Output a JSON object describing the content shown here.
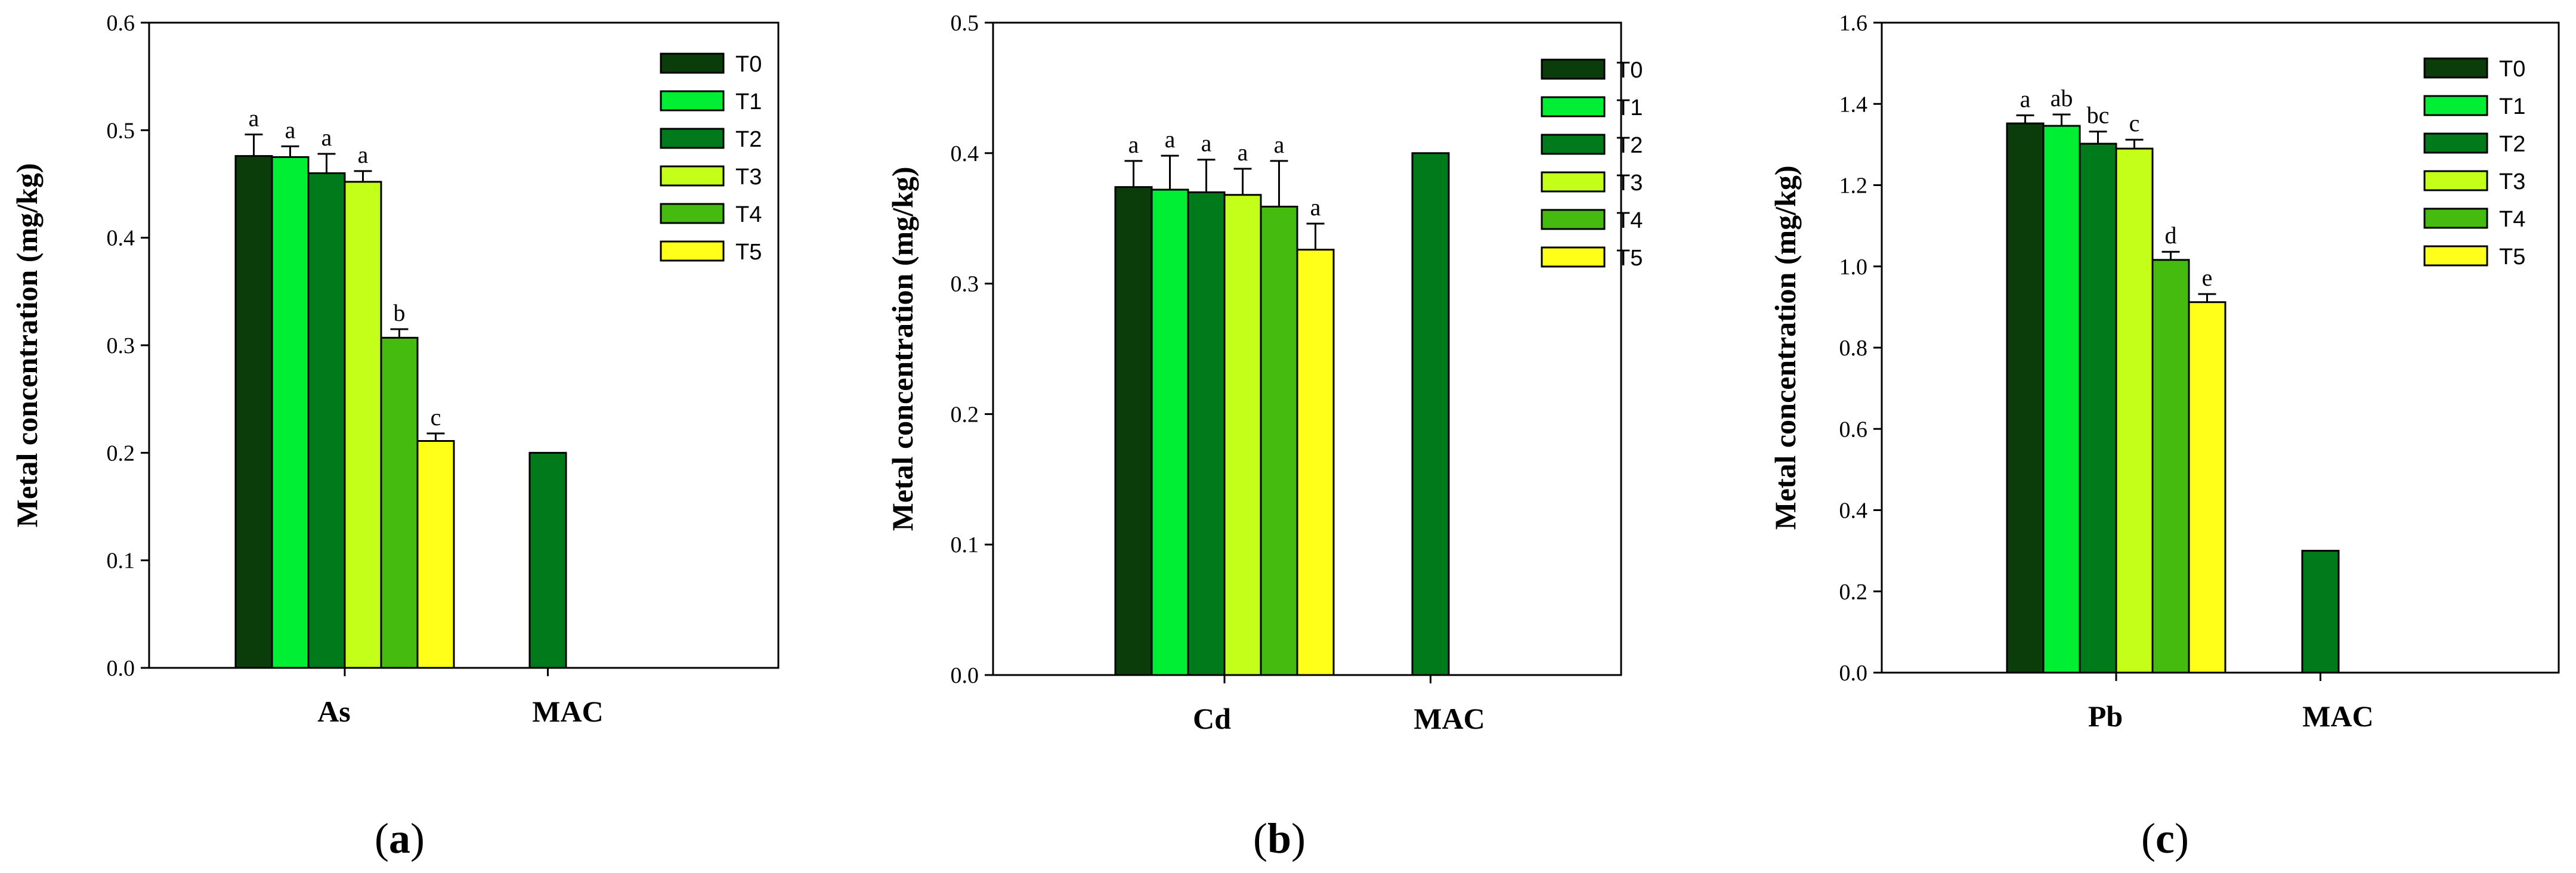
{
  "colors": {
    "T0": "#0b3d0b",
    "T1": "#00ee33",
    "T2": "#007a1a",
    "T3": "#c4ff1a",
    "T4": "#44bb0e",
    "T5": "#ffff1a",
    "MAC": "#007a1a"
  },
  "chart_data": [
    {
      "type": "bar",
      "panel": "a",
      "ylabel": "Metal concentration (mg/kg)",
      "ylim": [
        0,
        0.6
      ],
      "yticks": [
        "0.0",
        "0.1",
        "0.2",
        "0.3",
        "0.4",
        "0.5",
        "0.6"
      ],
      "categories": [
        "As",
        "MAC"
      ],
      "series": [
        {
          "name": "T0",
          "value": 0.476,
          "err": 0.02,
          "letter": "a"
        },
        {
          "name": "T1",
          "value": 0.475,
          "err": 0.01,
          "letter": "a"
        },
        {
          "name": "T2",
          "value": 0.46,
          "err": 0.018,
          "letter": "a"
        },
        {
          "name": "T3",
          "value": 0.452,
          "err": 0.01,
          "letter": "a"
        },
        {
          "name": "T4",
          "value": 0.307,
          "err": 0.008,
          "letter": "b"
        },
        {
          "name": "T5",
          "value": 0.211,
          "err": 0.007,
          "letter": "c"
        }
      ],
      "mac_value": 0.2,
      "legend": [
        "T0",
        "T1",
        "T2",
        "T3",
        "T4",
        "T5"
      ]
    },
    {
      "type": "bar",
      "panel": "b",
      "ylabel": "Metal concentration (mg/kg)",
      "ylim": [
        0,
        0.5
      ],
      "yticks": [
        "0.0",
        "0.1",
        "0.2",
        "0.3",
        "0.4",
        "0.5"
      ],
      "categories": [
        "Cd",
        "MAC"
      ],
      "series": [
        {
          "name": "T0",
          "value": 0.374,
          "err": 0.02,
          "letter": "a"
        },
        {
          "name": "T1",
          "value": 0.372,
          "err": 0.026,
          "letter": "a"
        },
        {
          "name": "T2",
          "value": 0.37,
          "err": 0.025,
          "letter": "a"
        },
        {
          "name": "T3",
          "value": 0.368,
          "err": 0.02,
          "letter": "a"
        },
        {
          "name": "T4",
          "value": 0.359,
          "err": 0.035,
          "letter": "a"
        },
        {
          "name": "T5",
          "value": 0.326,
          "err": 0.02,
          "letter": "a"
        }
      ],
      "mac_value": 0.4,
      "legend": [
        "T0",
        "T1",
        "T2",
        "T3",
        "T4",
        "T5"
      ]
    },
    {
      "type": "bar",
      "panel": "c",
      "ylabel": "Metal concentration (mg/kg)",
      "ylim": [
        0,
        1.6
      ],
      "yticks": [
        "0.0",
        "0.2",
        "0.4",
        "0.6",
        "0.8",
        "1.0",
        "1.2",
        "1.4",
        "1.6"
      ],
      "categories": [
        "Pb",
        "MAC"
      ],
      "series": [
        {
          "name": "T0",
          "value": 1.352,
          "err": 0.02,
          "letter": "a"
        },
        {
          "name": "T1",
          "value": 1.346,
          "err": 0.028,
          "letter": "ab"
        },
        {
          "name": "T2",
          "value": 1.302,
          "err": 0.03,
          "letter": "bc"
        },
        {
          "name": "T3",
          "value": 1.29,
          "err": 0.022,
          "letter": "c"
        },
        {
          "name": "T4",
          "value": 1.016,
          "err": 0.02,
          "letter": "d"
        },
        {
          "name": "T5",
          "value": 0.912,
          "err": 0.02,
          "letter": "e"
        }
      ],
      "mac_value": 0.3,
      "legend": [
        "T0",
        "T1",
        "T2",
        "T3",
        "T4",
        "T5"
      ]
    }
  ],
  "panel_labels": [
    {
      "open": "(",
      "letter": "a",
      "close": ")"
    },
    {
      "open": "(",
      "letter": "b",
      "close": ")"
    },
    {
      "open": "(",
      "letter": "c",
      "close": ")"
    }
  ]
}
